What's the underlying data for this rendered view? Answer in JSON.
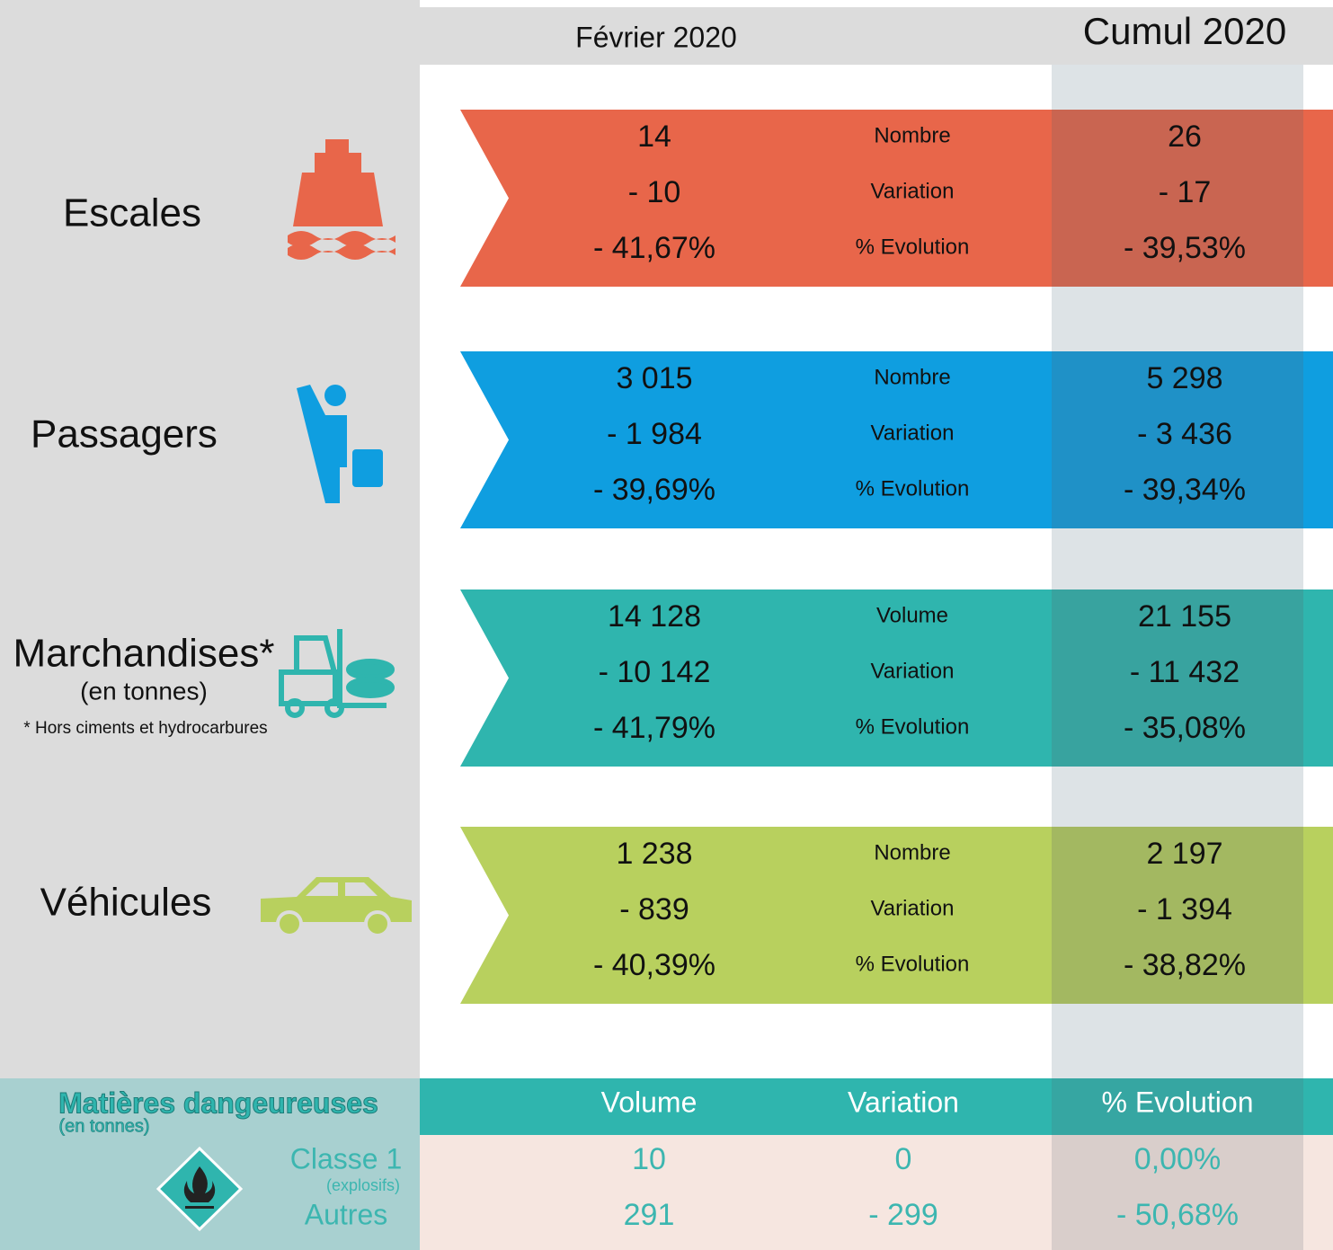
{
  "header": {
    "month": "Février 2020",
    "cumul": "Cumul 2020"
  },
  "sections": [
    {
      "label": "Escales",
      "color": "#e8664a",
      "rows": [
        {
          "month": "14",
          "metric": "Nombre",
          "cumul": "26"
        },
        {
          "month": "- 10",
          "metric": "Variation",
          "cumul": "- 17"
        },
        {
          "month": "- 41,67%",
          "metric": "% Evolution",
          "cumul": "- 39,53%"
        }
      ]
    },
    {
      "label": "Passagers",
      "color": "#0f9ee0",
      "rows": [
        {
          "month": "3 015",
          "metric": "Nombre",
          "cumul": "5 298"
        },
        {
          "month": "- 1 984",
          "metric": "Variation",
          "cumul": "- 3 436"
        },
        {
          "month": "- 39,69%",
          "metric": "% Evolution",
          "cumul": "- 39,34%"
        }
      ]
    },
    {
      "label": "Marchandises*",
      "sublabel": "(en tonnes)",
      "note": "* Hors ciments et hydrocarbures",
      "color": "#2fb5ae",
      "rows": [
        {
          "month": "14 128",
          "metric": "Volume",
          "cumul": "21 155"
        },
        {
          "month": "- 10 142",
          "metric": "Variation",
          "cumul": "- 11 432"
        },
        {
          "month": "- 41,79%",
          "metric": "% Evolution",
          "cumul": "- 35,08%"
        }
      ]
    },
    {
      "label": "Véhicules",
      "color": "#b8d05e",
      "rows": [
        {
          "month": "1 238",
          "metric": "Nombre",
          "cumul": "2 197"
        },
        {
          "month": "- 839",
          "metric": "Variation",
          "cumul": "- 1 394"
        },
        {
          "month": "- 40,39%",
          "metric": "% Evolution",
          "cumul": "- 38,82%"
        }
      ]
    }
  ],
  "dangerous": {
    "title": "Matières dangeureuses",
    "subtitle": "(en tonnes)",
    "columns": [
      "Volume",
      "Variation",
      "% Evolution"
    ],
    "rows": [
      {
        "label": "Classe 1",
        "sublabel": "(explosifs)",
        "values": [
          "10",
          "0",
          "0,00%"
        ]
      },
      {
        "label": "Autres",
        "values": [
          "291",
          "- 299",
          "- 50,68%"
        ]
      }
    ]
  }
}
